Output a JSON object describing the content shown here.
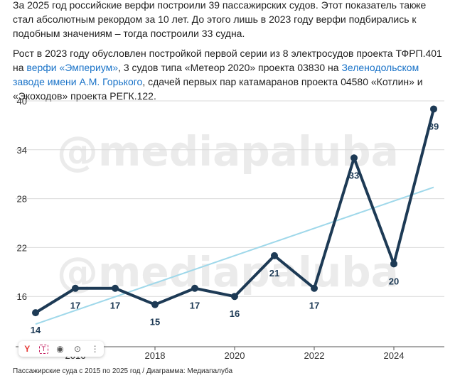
{
  "article": {
    "p1": "За 2025 год российские верфи построили 39 пассажирских судов. Этот показатель также стал абсолютным рекордом за 10 лет. До этого лишь в 2023 году верфи подбирались к подобным значениям – тогда построили 33 судна.",
    "p2_a": "Рост в 2023 году обусловлен постройкой первой серии из 8 электросудов проекта ТФРП.401 на ",
    "p2_link1": "верфи «Эмпериум»",
    "p2_b": ", 3 судов типа «Метеор 2020» проекта 03830 на ",
    "p2_link2": "Зеленодольском заводе имени А.М. Горького",
    "p2_c": ", сдачей первых пар катамаранов проекта 04580 «Котлин» и «Экоходов» проекта РЕГК.122."
  },
  "watermark": "@mediapaluba",
  "caption": "Пассажирские суда с 2015 по 2025 год / Диаграмма: Медиапалуба",
  "toolbar": {
    "icons": [
      "yandex-icon",
      "translate-icon",
      "eye-icon",
      "screenshot-icon",
      "more-icon"
    ]
  },
  "colors": {
    "line": "#1d3a55",
    "trend": "#9fd8ea",
    "grid": "#d9d9d9",
    "link": "#1a73c8"
  },
  "chart_data": {
    "type": "line",
    "x": [
      2015,
      2016,
      2017,
      2018,
      2019,
      2020,
      2021,
      2022,
      2023,
      2024,
      2025
    ],
    "values": [
      14,
      17,
      17,
      15,
      17,
      16,
      21,
      17,
      33,
      20,
      39
    ],
    "data_labels": [
      "14",
      "17",
      "17",
      "15",
      "17",
      "16",
      "21",
      "17",
      "33",
      "20",
      "39"
    ],
    "trendline": {
      "start": 12.6,
      "end": 29.4
    },
    "y_ticks": [
      16,
      22,
      28,
      34,
      40
    ],
    "x_ticks": [
      2016,
      2018,
      2020,
      2022,
      2024
    ],
    "ylim": [
      10,
      40
    ],
    "xlim": [
      2015,
      2025
    ],
    "grid": "horizontal"
  }
}
